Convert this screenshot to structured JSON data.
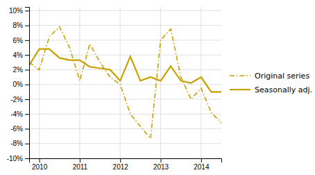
{
  "chart_data": {
    "type": "line",
    "x": [
      2009.75,
      2010.0,
      2010.25,
      2010.5,
      2010.75,
      2011.0,
      2011.25,
      2011.5,
      2011.75,
      2012.0,
      2012.25,
      2012.5,
      2012.75,
      2013.0,
      2013.25,
      2013.5,
      2013.75,
      2014.0,
      2014.25,
      2014.5
    ],
    "series": [
      {
        "name": "Original series",
        "color": "#C8A000",
        "line_style": "dashdot",
        "values": [
          0.03,
          0.02,
          0.065,
          0.078,
          0.05,
          0.005,
          0.055,
          0.03,
          0.01,
          0.0,
          -0.04,
          -0.057,
          -0.073,
          0.06,
          0.075,
          0.01,
          -0.02,
          -0.005,
          -0.038,
          -0.052
        ]
      },
      {
        "name": "Seasonally adj.",
        "color": "#C8A000",
        "line_style": "solid",
        "values": [
          0.026,
          0.048,
          0.048,
          0.036,
          0.033,
          0.033,
          0.024,
          0.022,
          0.02,
          0.005,
          0.038,
          0.005,
          0.01,
          0.005,
          0.025,
          0.005,
          0.002,
          0.01,
          -0.01,
          -0.01
        ]
      }
    ],
    "xlim": [
      2009.75,
      2014.5
    ],
    "xticks": [
      2010,
      2011,
      2012,
      2013,
      2014
    ],
    "ylim": [
      -0.1,
      0.105
    ],
    "yticks": [
      {
        "value": -0.1,
        "label": "-10%"
      },
      {
        "value": -0.08,
        "label": "-8%"
      },
      {
        "value": -0.06,
        "label": "-6%"
      },
      {
        "value": -0.04,
        "label": "-4%"
      },
      {
        "value": -0.02,
        "label": "-2%"
      },
      {
        "value": 0.0,
        "label": "0%"
      },
      {
        "value": 0.02,
        "label": "2%"
      },
      {
        "value": 0.04,
        "label": "4%"
      },
      {
        "value": 0.06,
        "label": "6%"
      },
      {
        "value": 0.08,
        "label": "8%"
      },
      {
        "value": 0.1,
        "label": "10%"
      }
    ],
    "grid": true,
    "legend": "right"
  }
}
